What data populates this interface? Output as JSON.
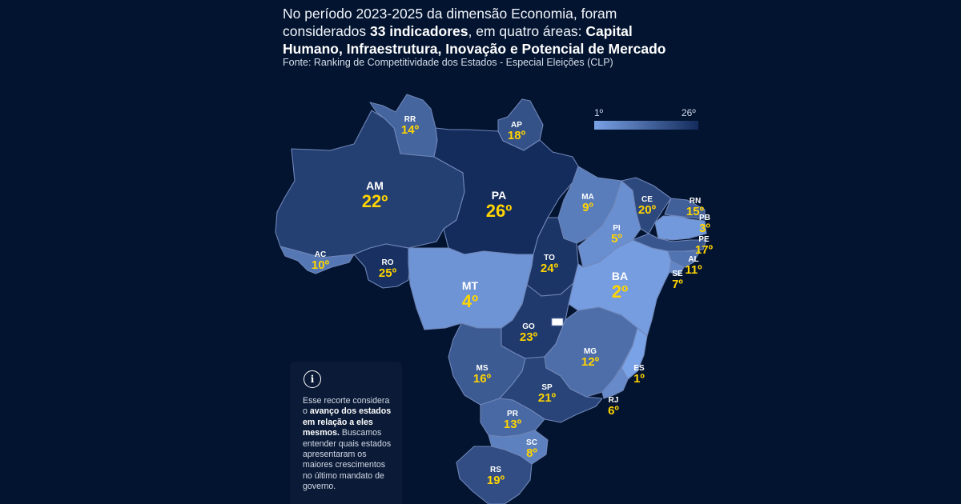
{
  "header": {
    "p1": "No período 2023-2025 da dimensão Economia, foram considerados ",
    "bold1": "33 indicadores",
    "p2": ", em quatro áreas: ",
    "bold2": "Capital Humano, Infraestrutura, Inovação e Potencial de Mercado",
    "source": "Fonte: Ranking de Competitividade dos Estados - Especial Eleições (CLP)"
  },
  "legend": {
    "min_label": "1º",
    "max_label": "26º",
    "color_min": "#7aa2e6",
    "color_max": "#142c5c"
  },
  "note": {
    "t1": "Esse recorte considera o ",
    "bold": "avanço dos estados em relação a eles mesmos.",
    "t2": " Buscamos entender quais estados apresentaram os maiores crescimentos no último mandato de governo."
  },
  "states": [
    {
      "abbr": "RR",
      "rank": "14º"
    },
    {
      "abbr": "AP",
      "rank": "18º"
    },
    {
      "abbr": "AM",
      "rank": "22º"
    },
    {
      "abbr": "PA",
      "rank": "26º"
    },
    {
      "abbr": "MA",
      "rank": "9º"
    },
    {
      "abbr": "CE",
      "rank": "20º"
    },
    {
      "abbr": "RN",
      "rank": "15º"
    },
    {
      "abbr": "PB",
      "rank": "3º"
    },
    {
      "abbr": "PE",
      "rank": "17º"
    },
    {
      "abbr": "AL",
      "rank": "11º"
    },
    {
      "abbr": "SE",
      "rank": "7º"
    },
    {
      "abbr": "PI",
      "rank": "5º"
    },
    {
      "abbr": "AC",
      "rank": "10º"
    },
    {
      "abbr": "RO",
      "rank": "25º"
    },
    {
      "abbr": "TO",
      "rank": "24º"
    },
    {
      "abbr": "BA",
      "rank": "2º"
    },
    {
      "abbr": "MT",
      "rank": "4º"
    },
    {
      "abbr": "GO",
      "rank": "23º"
    },
    {
      "abbr": "MG",
      "rank": "12º"
    },
    {
      "abbr": "ES",
      "rank": "1º"
    },
    {
      "abbr": "MS",
      "rank": "16º"
    },
    {
      "abbr": "SP",
      "rank": "21º"
    },
    {
      "abbr": "RJ",
      "rank": "6º"
    },
    {
      "abbr": "PR",
      "rank": "13º"
    },
    {
      "abbr": "SC",
      "rank": "8º"
    },
    {
      "abbr": "RS",
      "rank": "19º"
    }
  ]
}
